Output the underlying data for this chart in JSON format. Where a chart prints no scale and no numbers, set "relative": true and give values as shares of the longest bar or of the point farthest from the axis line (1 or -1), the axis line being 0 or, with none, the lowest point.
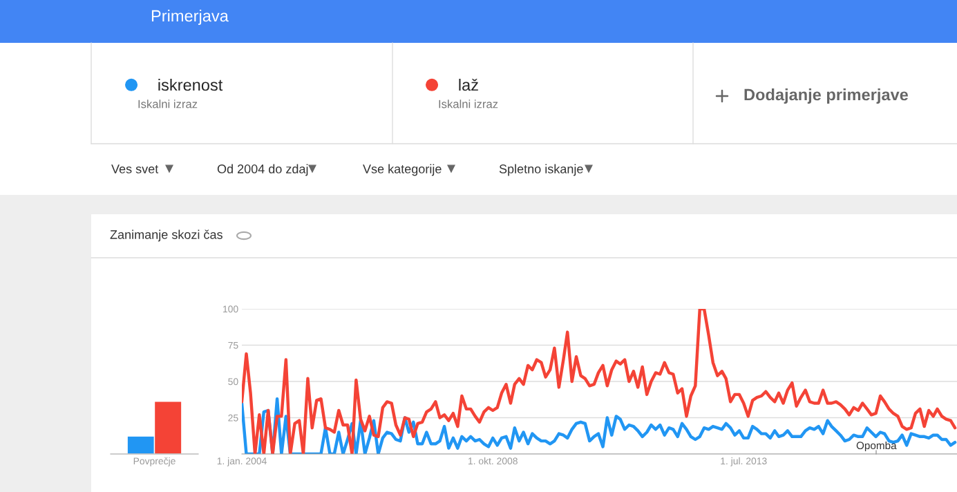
{
  "chart_data": [
    {
      "type": "line",
      "title": "Zanimanje skozi čas",
      "x": [
        "2004-01",
        "2004-02",
        "2004-03",
        "2004-04",
        "2004-05",
        "2004-06",
        "2004-07",
        "2004-08",
        "2004-09",
        "2004-10",
        "2004-11",
        "2004-12",
        "2005-01",
        "2005-02",
        "2005-03",
        "2005-04",
        "2005-05",
        "2005-06",
        "2005-07",
        "2005-08",
        "2005-09",
        "2005-10",
        "2005-11",
        "2005-12",
        "2006-01",
        "2006-02",
        "2006-03",
        "2006-04",
        "2006-05",
        "2006-06",
        "2006-07",
        "2006-08",
        "2006-09",
        "2006-10",
        "2006-11",
        "2006-12",
        "2007-01",
        "2007-02",
        "2007-03",
        "2007-04",
        "2007-05",
        "2007-06",
        "2007-07",
        "2007-08",
        "2007-09",
        "2007-10",
        "2007-11",
        "2007-12",
        "2008-01",
        "2008-02",
        "2008-03",
        "2008-04",
        "2008-05",
        "2008-06",
        "2008-07",
        "2008-08",
        "2008-09",
        "2008-10",
        "2008-11",
        "2008-12",
        "2009-01",
        "2009-02",
        "2009-03",
        "2009-04",
        "2009-05",
        "2009-06",
        "2009-07",
        "2009-08",
        "2009-09",
        "2009-10",
        "2009-11",
        "2009-12",
        "2010-01",
        "2010-02",
        "2010-03",
        "2010-04",
        "2010-05",
        "2010-06",
        "2010-07",
        "2010-08",
        "2010-09",
        "2010-10",
        "2010-11",
        "2010-12",
        "2011-01",
        "2011-02",
        "2011-03",
        "2011-04",
        "2011-05",
        "2011-06",
        "2011-07",
        "2011-08",
        "2011-09",
        "2011-10",
        "2011-11",
        "2011-12",
        "2012-01",
        "2012-02",
        "2012-03",
        "2012-04",
        "2012-05",
        "2012-06",
        "2012-07",
        "2012-08",
        "2012-09",
        "2012-10",
        "2012-11",
        "2012-12",
        "2013-01",
        "2013-02",
        "2013-03",
        "2013-04",
        "2013-05",
        "2013-06",
        "2013-07",
        "2013-08",
        "2013-09",
        "2013-10",
        "2013-11",
        "2013-12",
        "2014-01",
        "2014-02",
        "2014-03",
        "2014-04",
        "2014-05",
        "2014-06",
        "2014-07",
        "2014-08",
        "2014-09",
        "2014-10",
        "2014-11",
        "2014-12",
        "2015-01",
        "2015-02",
        "2015-03",
        "2015-04",
        "2015-05",
        "2015-06",
        "2015-07",
        "2015-08",
        "2015-09",
        "2015-10",
        "2015-11",
        "2015-12",
        "2016-01",
        "2016-02",
        "2016-03",
        "2016-04",
        "2016-05",
        "2016-06",
        "2016-07",
        "2016-08",
        "2016-09",
        "2016-10",
        "2016-11",
        "2016-12",
        "2017-01",
        "2017-02",
        "2017-03",
        "2017-04",
        "2017-05",
        "2017-06",
        "2017-07"
      ],
      "series": [
        {
          "name": "iskrenost",
          "color": "#2196f3",
          "values": [
            35,
            0,
            0,
            0,
            0,
            29,
            30,
            0,
            38,
            0,
            26,
            0,
            0,
            0,
            0,
            0,
            0,
            0,
            0,
            18,
            0,
            0,
            15,
            0,
            10,
            21,
            0,
            23,
            0,
            11,
            23,
            0,
            11,
            15,
            14,
            10,
            9,
            25,
            15,
            22,
            7,
            7,
            15,
            7,
            7,
            9,
            19,
            4,
            11,
            4,
            12,
            9,
            12,
            9,
            10,
            7,
            5,
            11,
            6,
            11,
            12,
            4,
            18,
            9,
            15,
            7,
            14,
            11,
            9,
            9,
            7,
            9,
            14,
            13,
            11,
            17,
            21,
            22,
            21,
            9,
            12,
            14,
            5,
            25,
            13,
            26,
            24,
            17,
            20,
            19,
            16,
            12,
            15,
            20,
            17,
            20,
            13,
            18,
            17,
            12,
            21,
            17,
            12,
            10,
            12,
            18,
            17,
            19,
            18,
            17,
            21,
            18,
            13,
            16,
            11,
            11,
            19,
            17,
            14,
            14,
            11,
            16,
            12,
            13,
            16,
            12,
            12,
            12,
            16,
            18,
            17,
            19,
            14,
            23,
            19,
            16,
            13,
            9,
            10,
            13,
            12,
            12,
            18,
            15,
            12,
            15,
            14,
            9,
            8,
            9,
            13,
            6,
            14,
            13,
            12,
            12,
            11,
            13,
            13,
            10,
            10,
            6,
            8
          ]
        },
        {
          "name": "laž",
          "color": "#f44336",
          "values": [
            36,
            69,
            42,
            0,
            27,
            0,
            30,
            0,
            26,
            26,
            65,
            0,
            21,
            23,
            0,
            52,
            18,
            37,
            38,
            18,
            17,
            15,
            30,
            20,
            20,
            0,
            51,
            24,
            16,
            26,
            13,
            12,
            32,
            36,
            35,
            20,
            13,
            25,
            24,
            12,
            21,
            22,
            29,
            31,
            36,
            25,
            27,
            23,
            28,
            19,
            40,
            31,
            31,
            26,
            22,
            29,
            32,
            30,
            32,
            42,
            48,
            35,
            48,
            52,
            48,
            61,
            58,
            65,
            63,
            53,
            58,
            73,
            46,
            65,
            84,
            50,
            67,
            54,
            52,
            47,
            48,
            56,
            61,
            47,
            58,
            64,
            62,
            65,
            50,
            57,
            46,
            60,
            41,
            50,
            56,
            55,
            63,
            56,
            55,
            42,
            45,
            26,
            40,
            47,
            100,
            100,
            82,
            63,
            54,
            57,
            52,
            36,
            41,
            41,
            35,
            26,
            37,
            39,
            40,
            43,
            39,
            36,
            42,
            35,
            44,
            49,
            33,
            39,
            44,
            36,
            35,
            35,
            44,
            35,
            35,
            36,
            34,
            31,
            27,
            32,
            30,
            35,
            31,
            27,
            28,
            40,
            36,
            31,
            28,
            26,
            19,
            17,
            18,
            28,
            31,
            19,
            30,
            26,
            31,
            26,
            24,
            23,
            18
          ]
        }
      ],
      "xlim": [
        "2004-01-01",
        "2017-07-15"
      ],
      "xticks": [
        {
          "value": "2004-01-01",
          "label": "1. jan. 2004"
        },
        {
          "value": "2008-10-01",
          "label": "1. okt. 2008"
        },
        {
          "value": "2013-07-01",
          "label": "1. jul. 2013"
        }
      ],
      "ylim": [
        0,
        100
      ],
      "yticks": [
        {
          "value": 0,
          "label": null
        },
        25,
        50,
        75,
        100
      ],
      "grid": "y",
      "legend": "top",
      "marker": "none",
      "line_style": "solid",
      "annotations": [
        "Primerjava",
        "Iskalni izraz",
        "Iskalni izraz",
        "Dodajanje primerjave",
        "Ves svet",
        "Od 2004 do zdaj",
        "Vse kategorije",
        "Spletno iskanje",
        "Opomba"
      ]
    },
    {
      "type": "bar",
      "relative": true,
      "categories": [
        "Povprečje"
      ],
      "series": [
        {
          "color": "#2196f3",
          "values": [
            0.34
          ]
        },
        {
          "color": "#f44336",
          "values": [
            1
          ]
        }
      ]
    }
  ]
}
